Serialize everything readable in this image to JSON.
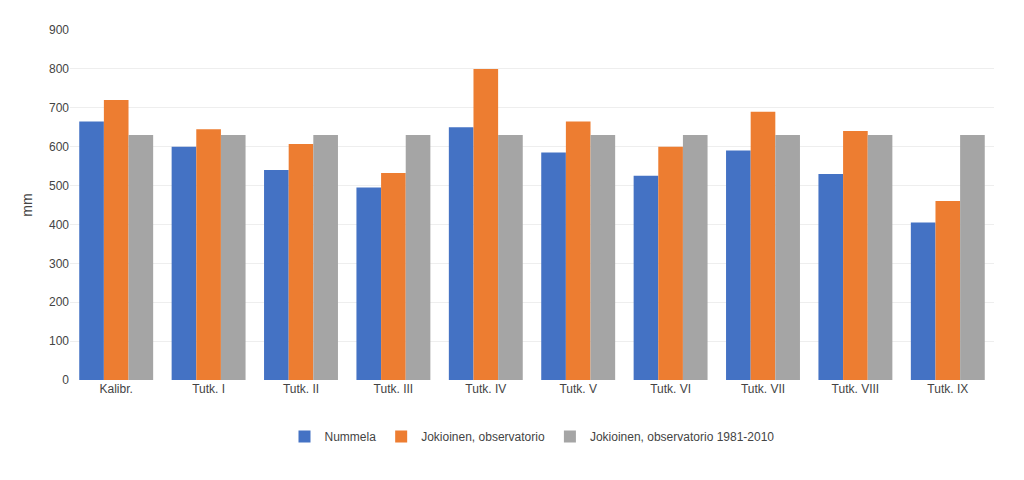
{
  "chart_data": {
    "type": "bar",
    "categories": [
      "Kalibr.",
      "Tutk. I",
      "Tutk. II",
      "Tutk. III",
      "Tutk. IV",
      "Tutk. V",
      "Tutk. VI",
      "Tutk. VII",
      "Tutk. VIII",
      "Tutk. IX"
    ],
    "series": [
      {
        "name": "Nummela",
        "color": "#4472C4",
        "values": [
          665,
          600,
          540,
          495,
          650,
          585,
          525,
          590,
          530,
          405
        ]
      },
      {
        "name": "Jokioinen, observatorio",
        "color": "#ED7D31",
        "values": [
          720,
          645,
          607,
          532,
          800,
          665,
          600,
          690,
          640,
          460
        ]
      },
      {
        "name": "Jokioinen, observatorio 1981-2010",
        "color": "#A5A5A5",
        "values": [
          630,
          630,
          630,
          630,
          630,
          630,
          630,
          630,
          630,
          630
        ]
      }
    ],
    "ylabel": "mm",
    "ylim": [
      0,
      900
    ],
    "yticks": [
      0,
      100,
      200,
      300,
      400,
      500,
      600,
      700,
      800,
      900
    ],
    "grid": true,
    "legend": "bottom"
  }
}
